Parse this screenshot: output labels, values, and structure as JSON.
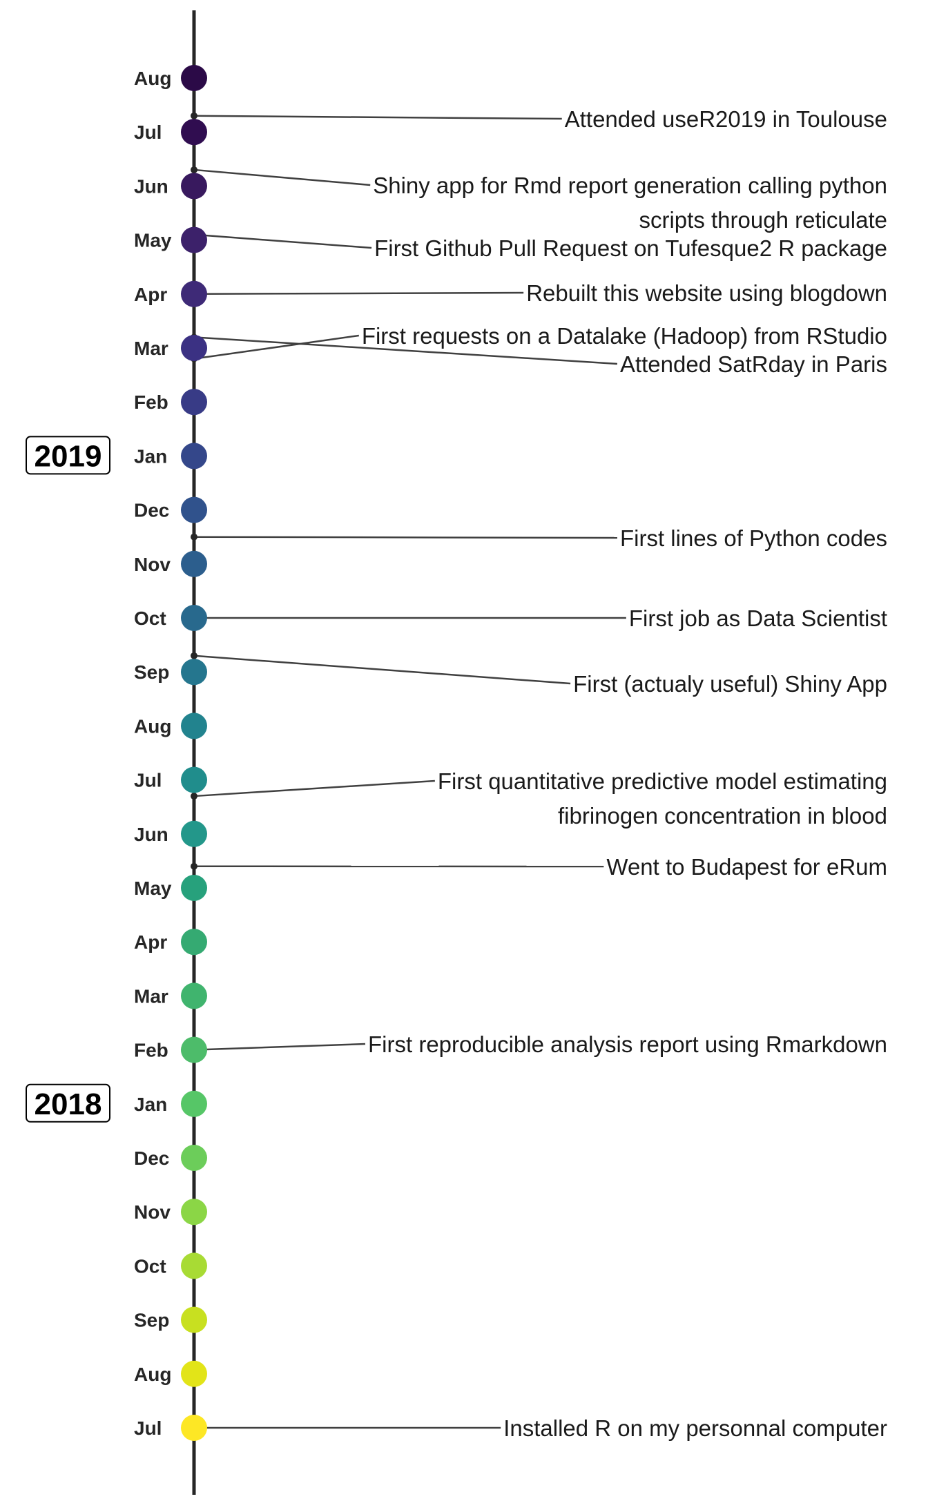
{
  "chart_data": {
    "type": "timeline",
    "months": [
      {
        "label": "Jul",
        "color": "#fde725"
      },
      {
        "label": "Aug",
        "color": "#e2e418"
      },
      {
        "label": "Sep",
        "color": "#c8e020"
      },
      {
        "label": "Oct",
        "color": "#a8db34"
      },
      {
        "label": "Nov",
        "color": "#8bd646"
      },
      {
        "label": "Dec",
        "color": "#6ccd5a"
      },
      {
        "label": "Jan",
        "color": "#56c667"
      },
      {
        "label": "Feb",
        "color": "#4dbc6a"
      },
      {
        "label": "Mar",
        "color": "#40b46e"
      },
      {
        "label": "Apr",
        "color": "#35aa72"
      },
      {
        "label": "May",
        "color": "#27a17c"
      },
      {
        "label": "Jun",
        "color": "#23978a"
      },
      {
        "label": "Jul",
        "color": "#208d8c"
      },
      {
        "label": "Aug",
        "color": "#22838e"
      },
      {
        "label": "Sep",
        "color": "#25768e"
      },
      {
        "label": "Oct",
        "color": "#28698d"
      },
      {
        "label": "Nov",
        "color": "#2c5e8d"
      },
      {
        "label": "Dec",
        "color": "#30528c"
      },
      {
        "label": "Jan",
        "color": "#34478a"
      },
      {
        "label": "Feb",
        "color": "#383b86"
      },
      {
        "label": "Mar",
        "color": "#3b3183"
      },
      {
        "label": "Apr",
        "color": "#3e2a77"
      },
      {
        "label": "May",
        "color": "#3c216a"
      },
      {
        "label": "Jun",
        "color": "#38195e"
      },
      {
        "label": "Jul",
        "color": "#300d50"
      },
      {
        "label": "Aug",
        "color": "#2b0a47"
      }
    ],
    "years": [
      {
        "label": "2018",
        "month_index": 6
      },
      {
        "label": "2019",
        "month_index": 18
      }
    ],
    "events": [
      {
        "text": [
          "Installed R on my personnal computer"
        ],
        "date": 0.0
      },
      {
        "text": [
          "First reproducible analysis report using Rmarkdown"
        ],
        "date": 7.0
      },
      {
        "text": [
          "Went to Budapest for eRum"
        ],
        "date": 10.4
      },
      {
        "text": [
          "First quantitative predictive model estimating",
          "fibrinogen concentration in blood"
        ],
        "date": 11.7
      },
      {
        "text": [
          "First (actualy useful) Shiny App"
        ],
        "date": 14.3
      },
      {
        "text": [
          "First job as Data Scientist"
        ],
        "date": 15.0
      },
      {
        "text": [
          "First lines of Python codes"
        ],
        "date": 16.5
      },
      {
        "text": [
          "Attended SatRday in Paris"
        ],
        "date": 20.2
      },
      {
        "text": [
          "First requests on a Datalake (Hadoop) from RStudio"
        ],
        "date": 19.8
      },
      {
        "text": [
          "Rebuilt this website using blogdown"
        ],
        "date": 21.0
      },
      {
        "text": [
          "First Github Pull Request on Tufesque2 R package"
        ],
        "date": 22.1
      },
      {
        "text": [
          "Shiny app for Rmd report generation calling python",
          "scripts through reticulate"
        ],
        "date": 23.3
      },
      {
        "text": [
          "Attended useR2019 in Toulouse"
        ],
        "date": 24.3
      }
    ]
  }
}
